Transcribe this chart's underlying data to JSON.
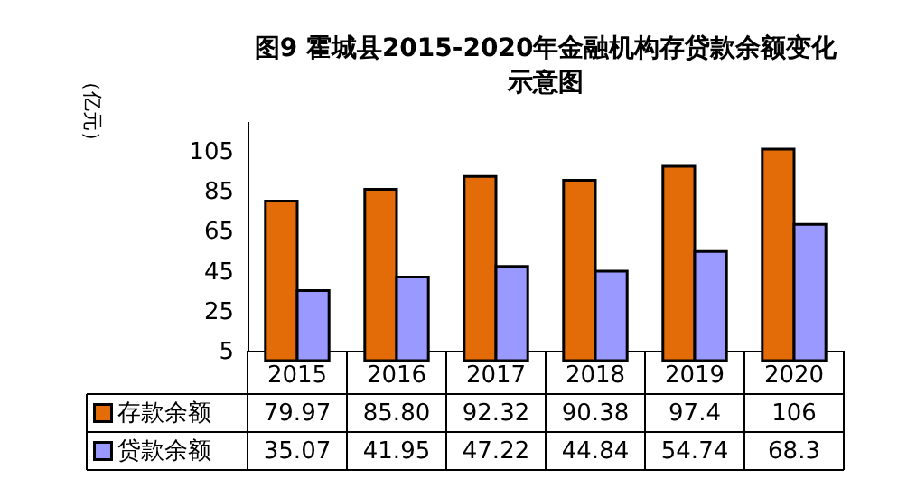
{
  "chart_data": {
    "type": "bar",
    "title": [
      "图9 霍城县2015-2020年金融机构存贷款余额变化",
      "示意图"
    ],
    "ylabel": "（亿元）",
    "categories": [
      "2015",
      "2016",
      "2017",
      "2018",
      "2019",
      "2020"
    ],
    "series": [
      {
        "name": "存款余额",
        "color": "#e36c09",
        "values": [
          79.97,
          85.8,
          92.32,
          90.38,
          97.4,
          106
        ],
        "value_labels": [
          "79.97",
          "85.80",
          "92.32",
          "90.38",
          "97.4",
          "106"
        ]
      },
      {
        "name": "贷款余额",
        "color": "#9999ff",
        "values": [
          35.07,
          41.95,
          47.22,
          44.84,
          54.74,
          68.3
        ],
        "value_labels": [
          "35.07",
          "41.95",
          "47.22",
          "44.84",
          "54.74",
          "68.3"
        ]
      }
    ],
    "ylim": [
      5,
      120
    ],
    "yticks": [
      5,
      25,
      45,
      65,
      85,
      105
    ],
    "grid": false,
    "legend": "bottom"
  }
}
